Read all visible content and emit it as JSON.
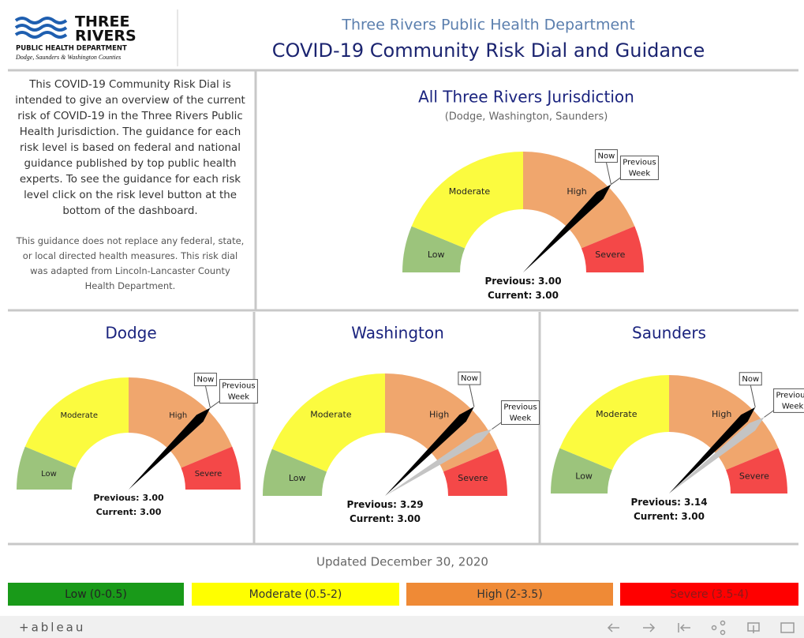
{
  "header": {
    "logo": {
      "line1": "THREE",
      "line2": "RIVERS",
      "line3": "PUBLIC HEALTH DEPARTMENT",
      "line4": "Dodge, Saunders & Washington Counties"
    },
    "org": "Three Rivers Public Health Department",
    "title": "COVID-19 Community Risk Dial and Guidance"
  },
  "intro": {
    "text": "This COVID-19 Community Risk Dial is intended to give an overview of the current risk of COVID-19 in the Three Rivers Public Health Jurisdiction. The guidance for each risk level is based on federal and national guidance published by top public health experts. To see the guidance for each risk level click on the risk level button at the bottom of the dashboard.",
    "note": "This guidance does not replace any federal, state, or local directed health measures. This risk dial was adapted from Lincoln-Lancaster County Health Department."
  },
  "levels": [
    {
      "name": "Low",
      "range": "(0-0.5)",
      "from": 0,
      "to": 0.5,
      "dial_color": "#9cc47c",
      "button_color": "#199a19",
      "text_color": "#222222"
    },
    {
      "name": "Moderate",
      "range": "(0.5-2)",
      "from": 0.5,
      "to": 2,
      "dial_color": "#fbfb3f",
      "button_color": "#ffff00",
      "text_color": "#333333"
    },
    {
      "name": "High",
      "range": "(2-3.5)",
      "from": 2,
      "to": 3.5,
      "dial_color": "#f0a66d",
      "button_color": "#ef8a36",
      "text_color": "#333333"
    },
    {
      "name": "Severe",
      "range": "(3.5-4)",
      "from": 3.5,
      "to": 4,
      "dial_color": "#f44848",
      "button_color": "#ff0000",
      "text_color": "#8b1a1a"
    }
  ],
  "labels": {
    "previous": "Previous:",
    "current": "Current:",
    "now": "Now",
    "previous_week": [
      "Previous",
      "Week"
    ]
  },
  "needles": {
    "current_color": "#000000",
    "previous_color": "#c4c4c4"
  },
  "dials": [
    {
      "title": "All Three Rivers Jurisdiction",
      "subtitle": "(Dodge, Washington, Saunders)",
      "previous": "3.00",
      "current": "3.00"
    },
    {
      "title": "Dodge",
      "previous": "3.00",
      "current": "3.00"
    },
    {
      "title": "Washington",
      "previous": "3.29",
      "current": "3.00"
    },
    {
      "title": "Saunders",
      "previous": "3.14",
      "current": "3.00"
    }
  ],
  "updated": "Updated December 30, 2020",
  "footer": {
    "brand": "+ableau"
  }
}
